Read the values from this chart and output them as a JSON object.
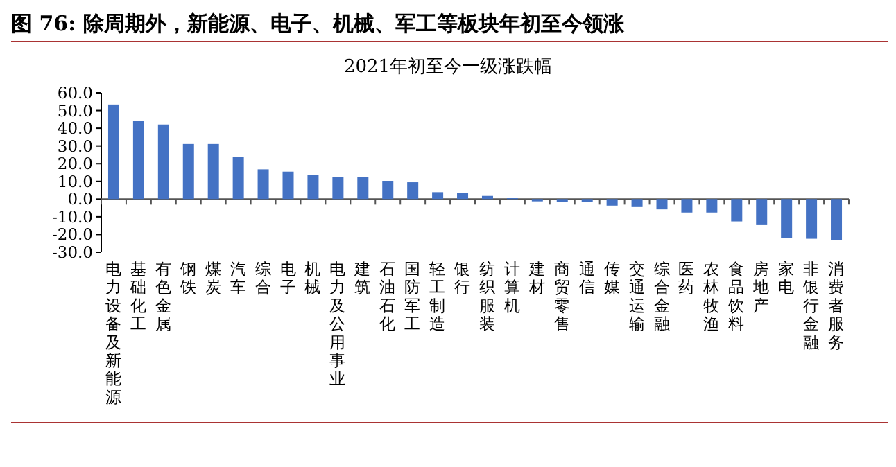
{
  "chart_data": {
    "type": "bar",
    "title": "图 76: 除周期外，新能源、电子、机械、军工等板块年初至今领涨",
    "subtitle": "2021年初至今一级涨跌幅",
    "categories": [
      "电力设备及新能源",
      "基础化工",
      "有色金属",
      "钢铁",
      "煤炭",
      "汽车",
      "综合",
      "电子",
      "机械",
      "电力及公用事业",
      "建筑",
      "石油石化",
      "国防军工",
      "轻工制造",
      "银行",
      "纺织服装",
      "计算机",
      "建材",
      "商贸零售",
      "通信",
      "传媒",
      "交通运输",
      "综合金融",
      "医药",
      "农林牧渔",
      "食品饮料",
      "房地产",
      "家电",
      "非银行金融",
      "消费者服务"
    ],
    "values": [
      53.4,
      44.2,
      42.1,
      31.1,
      31.1,
      23.9,
      16.8,
      15.5,
      13.7,
      12.4,
      12.4,
      10.3,
      9.5,
      3.9,
      3.4,
      1.8,
      0.5,
      -1.3,
      -1.8,
      -1.8,
      -3.7,
      -4.5,
      -5.8,
      -7.6,
      -7.6,
      -12.6,
      -14.7,
      -21.8,
      -22.4,
      -23.2
    ],
    "color": "#4472c4",
    "ylim": [
      -30,
      60
    ],
    "yticks": [
      {
        "value": 60,
        "label": "60.0"
      },
      {
        "value": 50,
        "label": "50.0"
      },
      {
        "value": 40,
        "label": "40.0"
      },
      {
        "value": 30,
        "label": "30.0"
      },
      {
        "value": 20,
        "label": "20.0"
      },
      {
        "value": 10,
        "label": "10.0"
      },
      {
        "value": 0,
        "label": "0.0"
      },
      {
        "value": -10,
        "label": "-10.0"
      },
      {
        "value": -20,
        "label": "-20.0"
      },
      {
        "value": -30,
        "label": "-30.0"
      }
    ],
    "marker": "none"
  }
}
